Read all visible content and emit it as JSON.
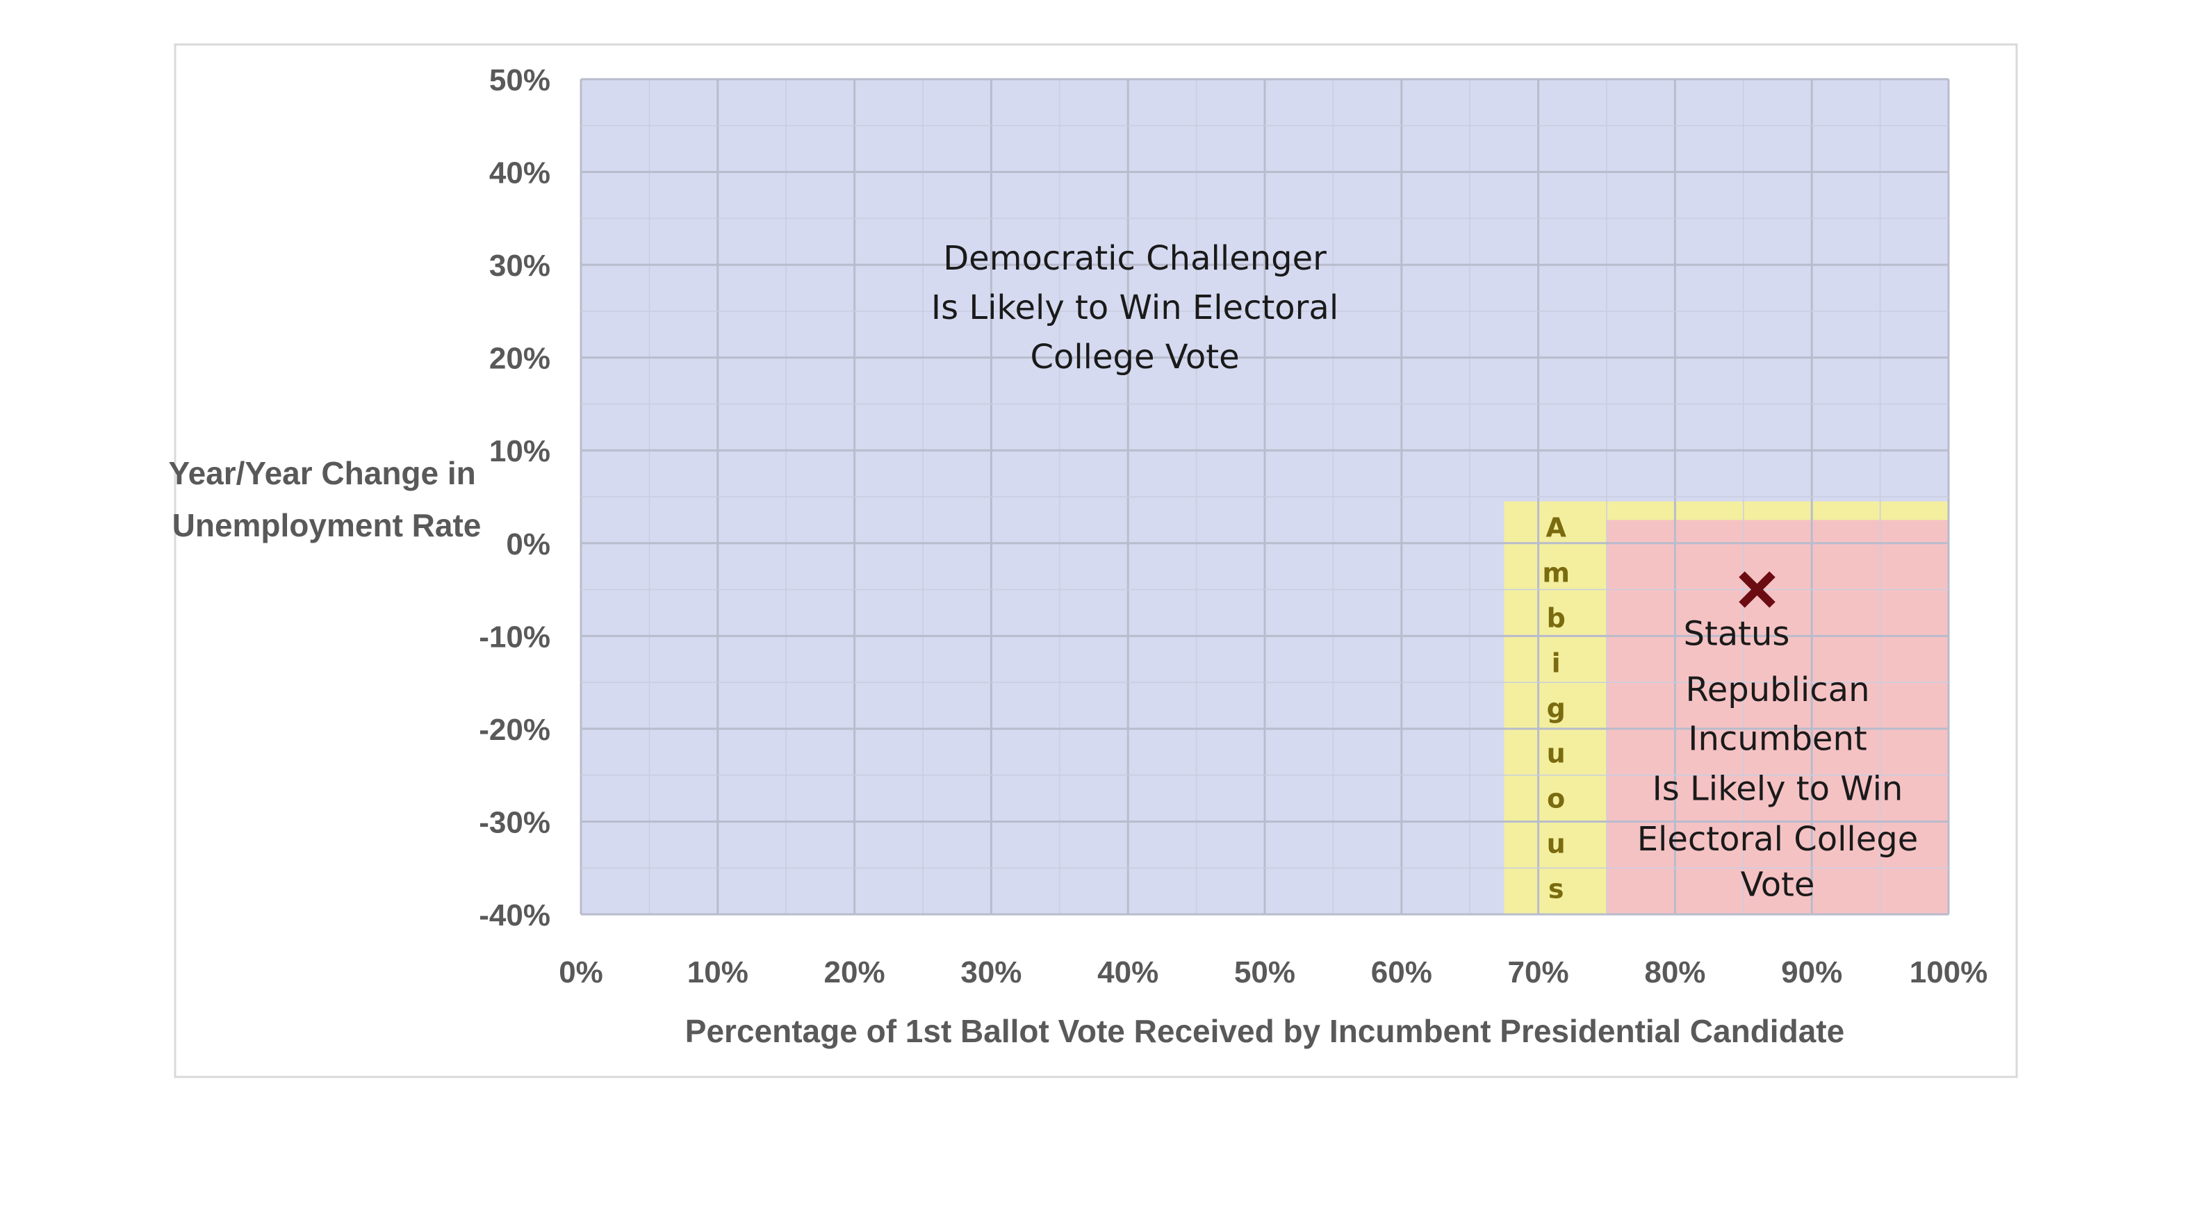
{
  "chart_data": {
    "type": "scatter",
    "xlabel": "Percentage of 1st Ballot Vote Received by Incumbent Presidential Candidate",
    "ylabel_lines": [
      "Year/Year Change in",
      "Unemployment Rate"
    ],
    "xlim": [
      0,
      100
    ],
    "ylim": [
      -40,
      50
    ],
    "x_ticks": [
      0,
      10,
      20,
      30,
      40,
      50,
      60,
      70,
      80,
      90,
      100
    ],
    "y_ticks": [
      50,
      40,
      30,
      20,
      10,
      0,
      -10,
      -20,
      -30,
      -40
    ],
    "x_tick_labels": [
      "0%",
      "10%",
      "20%",
      "30%",
      "40%",
      "50%",
      "60%",
      "70%",
      "80%",
      "90%",
      "100%"
    ],
    "y_tick_labels": [
      "50%",
      "40%",
      "30%",
      "20%",
      "10%",
      "0%",
      "-10%",
      "-20%",
      "-30%",
      "-40%"
    ],
    "grid": true,
    "regions": [
      {
        "id": "democratic",
        "x": [
          0,
          100
        ],
        "y": [
          -40,
          50
        ],
        "color": "#d6daf0",
        "label_lines": [
          "Democratic Challenger",
          "Is Likely to Win Electoral",
          "College Vote"
        ]
      },
      {
        "id": "ambiguous",
        "x": [
          67.5,
          100
        ],
        "y": [
          -40,
          4.5
        ],
        "color": "#f3ef9e",
        "label_letters": [
          "A",
          "m",
          "b",
          "i",
          "g",
          "u",
          "o",
          "u",
          "s"
        ]
      },
      {
        "id": "republican",
        "x": [
          75,
          100
        ],
        "y": [
          -40,
          2.5
        ],
        "color": "#f5c2c4",
        "label_lines": [
          "Status",
          "Republican",
          "Incumbent",
          "Is Likely to Win",
          "Electoral College",
          "Vote"
        ]
      }
    ],
    "points": [
      {
        "x": 86,
        "y": -5,
        "marker": "x",
        "color": "#6b0c12"
      }
    ]
  }
}
